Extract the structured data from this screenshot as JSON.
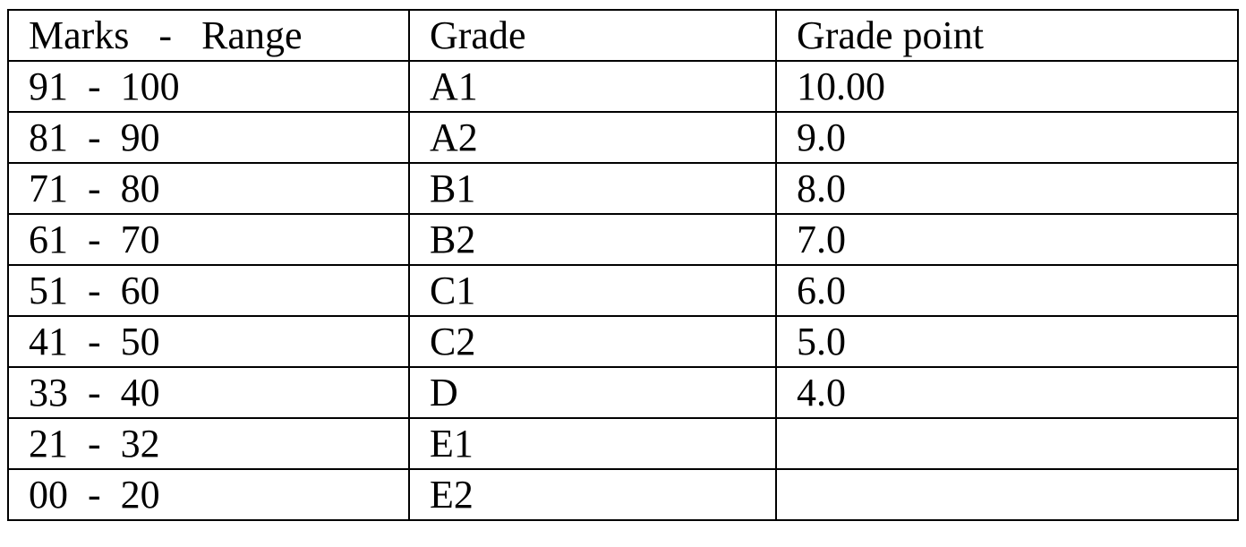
{
  "table": {
    "headers": {
      "range": "Marks   -   Range",
      "grade": "Grade",
      "point": "Grade point"
    },
    "rows": [
      {
        "range": "91  -  100",
        "grade": "A1",
        "point": "10.00"
      },
      {
        "range": "81  -  90",
        "grade": "A2",
        "point": "9.0"
      },
      {
        "range": "71  -  80",
        "grade": "B1",
        "point": "8.0"
      },
      {
        "range": "61  -  70",
        "grade": "B2",
        "point": "7.0"
      },
      {
        "range": "51  -  60",
        "grade": "C1",
        "point": "6.0"
      },
      {
        "range": "41  -  50",
        "grade": "C2",
        "point": "5.0"
      },
      {
        "range": "33  -  40",
        "grade": "D",
        "point": "4.0"
      },
      {
        "range": "21  -  32",
        "grade": "E1",
        "point": ""
      },
      {
        "range": "00  -  20",
        "grade": "E2",
        "point": ""
      }
    ]
  }
}
